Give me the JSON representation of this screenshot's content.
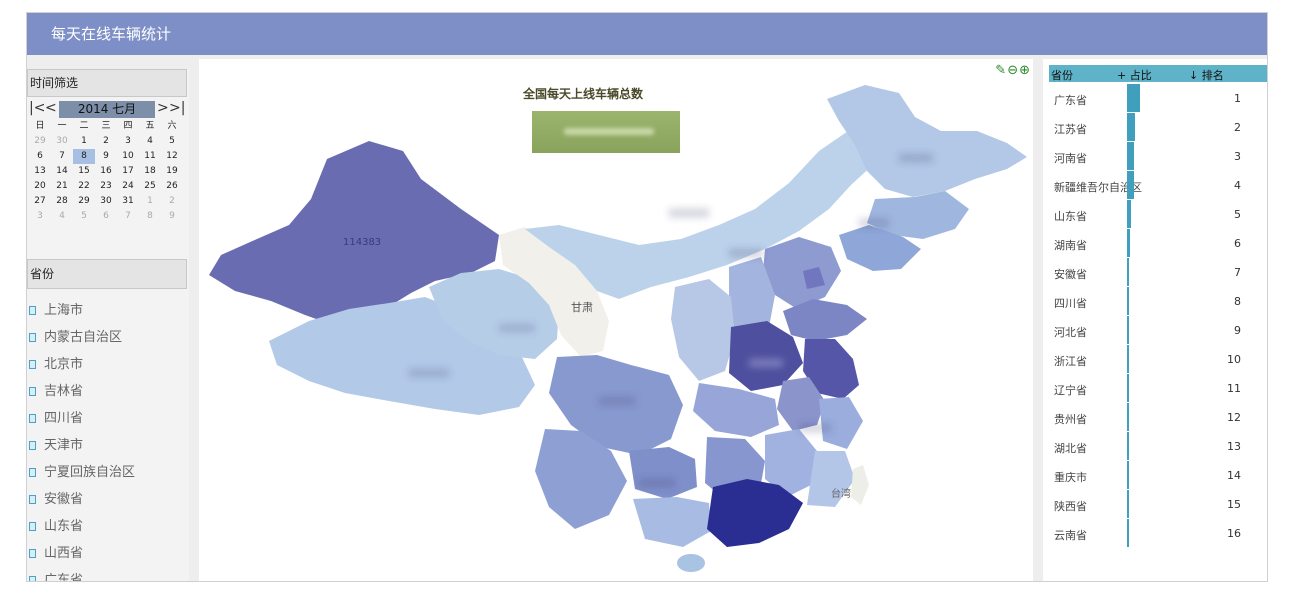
{
  "app": {
    "title": "每天在线车辆统计"
  },
  "time_filter": {
    "header": "时间筛选",
    "nav": {
      "first": "|<",
      "prev": "<",
      "next": ">",
      "last": ">|"
    },
    "month_label": "2014 七月",
    "weekdays": [
      "日",
      "一",
      "二",
      "三",
      "四",
      "五",
      "六"
    ],
    "weeks": [
      [
        "29",
        "30",
        "1",
        "2",
        "3",
        "4",
        "5"
      ],
      [
        "6",
        "7",
        "8",
        "9",
        "10",
        "11",
        "12"
      ],
      [
        "13",
        "14",
        "15",
        "16",
        "17",
        "18",
        "19"
      ],
      [
        "20",
        "21",
        "22",
        "23",
        "24",
        "25",
        "26"
      ],
      [
        "27",
        "28",
        "29",
        "30",
        "31",
        "1",
        "2"
      ],
      [
        "3",
        "4",
        "5",
        "6",
        "7",
        "8",
        "9"
      ]
    ],
    "selected_day": "8"
  },
  "province_filter": {
    "header": "省份",
    "items": [
      "上海市",
      "内蒙古自治区",
      "北京市",
      "吉林省",
      "四川省",
      "天津市",
      "宁夏回族自治区",
      "安徽省",
      "山东省",
      "山西省",
      "广东省"
    ]
  },
  "map": {
    "title": "全国每天上线车辆总数",
    "tools": [
      "edit-icon",
      "zoom-out-icon",
      "zoom-in-icon"
    ],
    "labels": [
      {
        "text": "114383",
        "region": "新疆"
      },
      {
        "text": "甘肃",
        "region": "甘肃"
      },
      {
        "text": "台湾",
        "region": "台湾"
      }
    ]
  },
  "ranking": {
    "headers": {
      "province": "省份",
      "share": "+ 占比",
      "rank": "↓ 排名"
    },
    "rows": [
      {
        "province": "广东省",
        "rank": "1",
        "share": 1.0
      },
      {
        "province": "江苏省",
        "rank": "2",
        "share": 0.62
      },
      {
        "province": "河南省",
        "rank": "3",
        "share": 0.55
      },
      {
        "province": "新疆维吾尔自治区",
        "rank": "4",
        "share": 0.5
      },
      {
        "province": "山东省",
        "rank": "5",
        "share": 0.28
      },
      {
        "province": "湖南省",
        "rank": "6",
        "share": 0.2
      },
      {
        "province": "安徽省",
        "rank": "7",
        "share": 0.17
      },
      {
        "province": "四川省",
        "rank": "8",
        "share": 0.15
      },
      {
        "province": "河北省",
        "rank": "9",
        "share": 0.13
      },
      {
        "province": "浙江省",
        "rank": "10",
        "share": 0.12
      },
      {
        "province": "辽宁省",
        "rank": "11",
        "share": 0.11
      },
      {
        "province": "贵州省",
        "rank": "12",
        "share": 0.1
      },
      {
        "province": "湖北省",
        "rank": "13",
        "share": 0.1
      },
      {
        "province": "重庆市",
        "rank": "14",
        "share": 0.09
      },
      {
        "province": "陕西省",
        "rank": "15",
        "share": 0.08
      },
      {
        "province": "云南省",
        "rank": "16",
        "share": 0.07
      }
    ]
  },
  "colors": {
    "title_bar": "#7d8fc6",
    "bar": "#3f9fbd",
    "table_header": "#5fb3c8",
    "total_box": "#93ad66"
  }
}
